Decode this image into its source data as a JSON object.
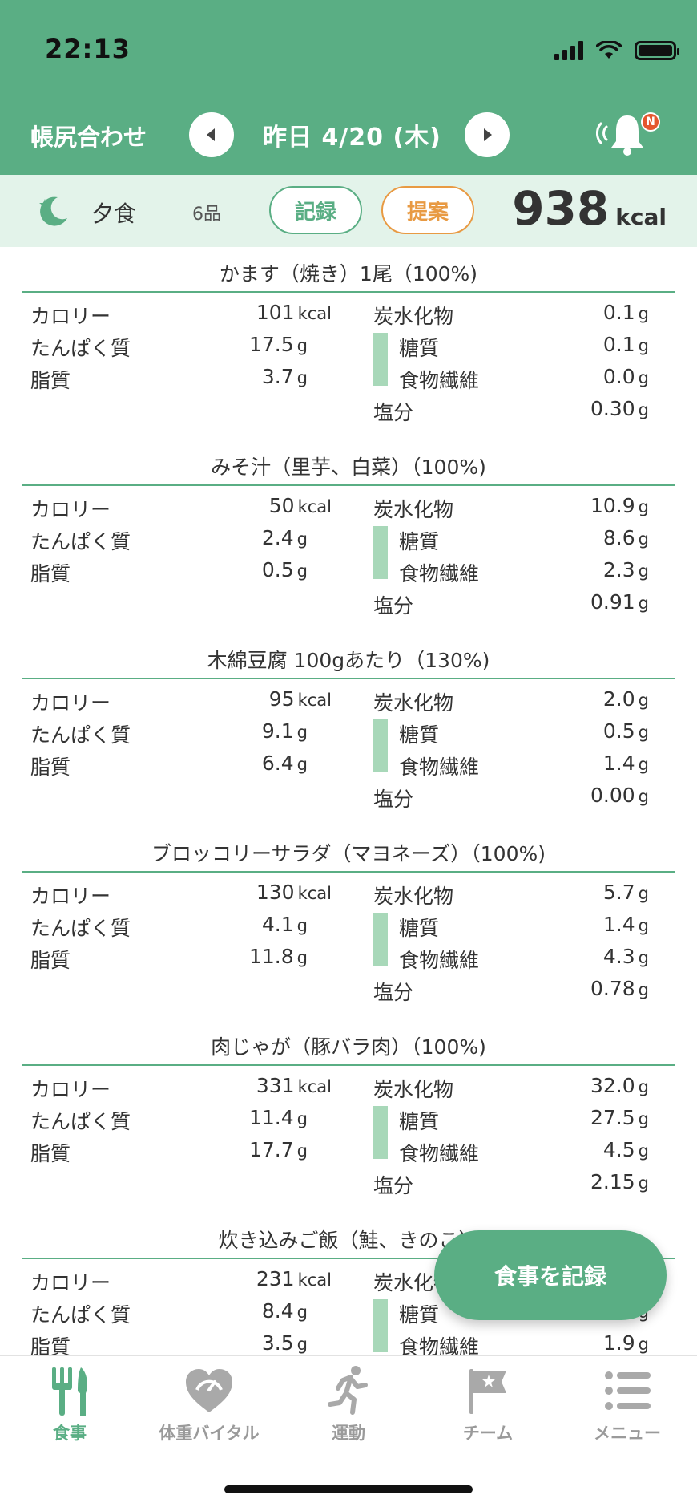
{
  "status": {
    "time": "22:13"
  },
  "header": {
    "title": "帳尻合わせ",
    "date_label": "昨日 4/20 (木)",
    "badge": "N"
  },
  "meal": {
    "name": "夕食",
    "count": "6品",
    "record_label": "記録",
    "suggest_label": "提案",
    "total_kcal": "938",
    "kcal_unit": "kcal"
  },
  "labels": {
    "calorie": "カロリー",
    "protein": "たんぱく質",
    "fat": "脂質",
    "carb": "炭水化物",
    "sugar": "糖質",
    "fiber": "食物繊維",
    "salt": "塩分",
    "kcal": "kcal",
    "g": "g"
  },
  "foods": [
    {
      "title": "かます（焼き）1尾（100%)",
      "calorie": "101",
      "protein": "17.5",
      "fat": "3.7",
      "carb": "0.1",
      "sugar": "0.1",
      "fiber": "0.0",
      "salt": "0.30"
    },
    {
      "title": "みそ汁（里芋、白菜）（100%)",
      "calorie": "50",
      "protein": "2.4",
      "fat": "0.5",
      "carb": "10.9",
      "sugar": "8.6",
      "fiber": "2.3",
      "salt": "0.91"
    },
    {
      "title": "木綿豆腐 100gあたり（130%)",
      "calorie": "95",
      "protein": "9.1",
      "fat": "6.4",
      "carb": "2.0",
      "sugar": "0.5",
      "fiber": "1.4",
      "salt": "0.00"
    },
    {
      "title": "ブロッコリーサラダ（マヨネーズ）（100%)",
      "calorie": "130",
      "protein": "4.1",
      "fat": "11.8",
      "carb": "5.7",
      "sugar": "1.4",
      "fiber": "4.3",
      "salt": "0.78"
    },
    {
      "title": "肉じゃが（豚バラ肉）（100%)",
      "calorie": "331",
      "protein": "11.4",
      "fat": "17.7",
      "carb": "32.0",
      "sugar": "27.5",
      "fiber": "4.5",
      "salt": "2.15"
    },
    {
      "title": "炊き込みご飯（鮭、きのこ）",
      "calorie": "231",
      "protein": "8.4",
      "fat": "3.5",
      "carb": "",
      "sugar": "",
      "fiber": "1.9",
      "salt": ""
    }
  ],
  "float_button": "食事を記録",
  "tabs": [
    {
      "label": "食事",
      "icon": "fork-knife-icon",
      "active": true
    },
    {
      "label": "体重バイタル",
      "icon": "heart-scale-icon",
      "active": false
    },
    {
      "label": "運動",
      "icon": "runner-icon",
      "active": false
    },
    {
      "label": "チーム",
      "icon": "flag-icon",
      "active": false
    },
    {
      "label": "メニュー",
      "icon": "menu-list-icon",
      "active": false
    }
  ],
  "colors": {
    "brand_green": "#5aae84",
    "light_green": "#e3f3ea",
    "accent_orange": "#e89a43",
    "badge_red": "#e4572e"
  }
}
